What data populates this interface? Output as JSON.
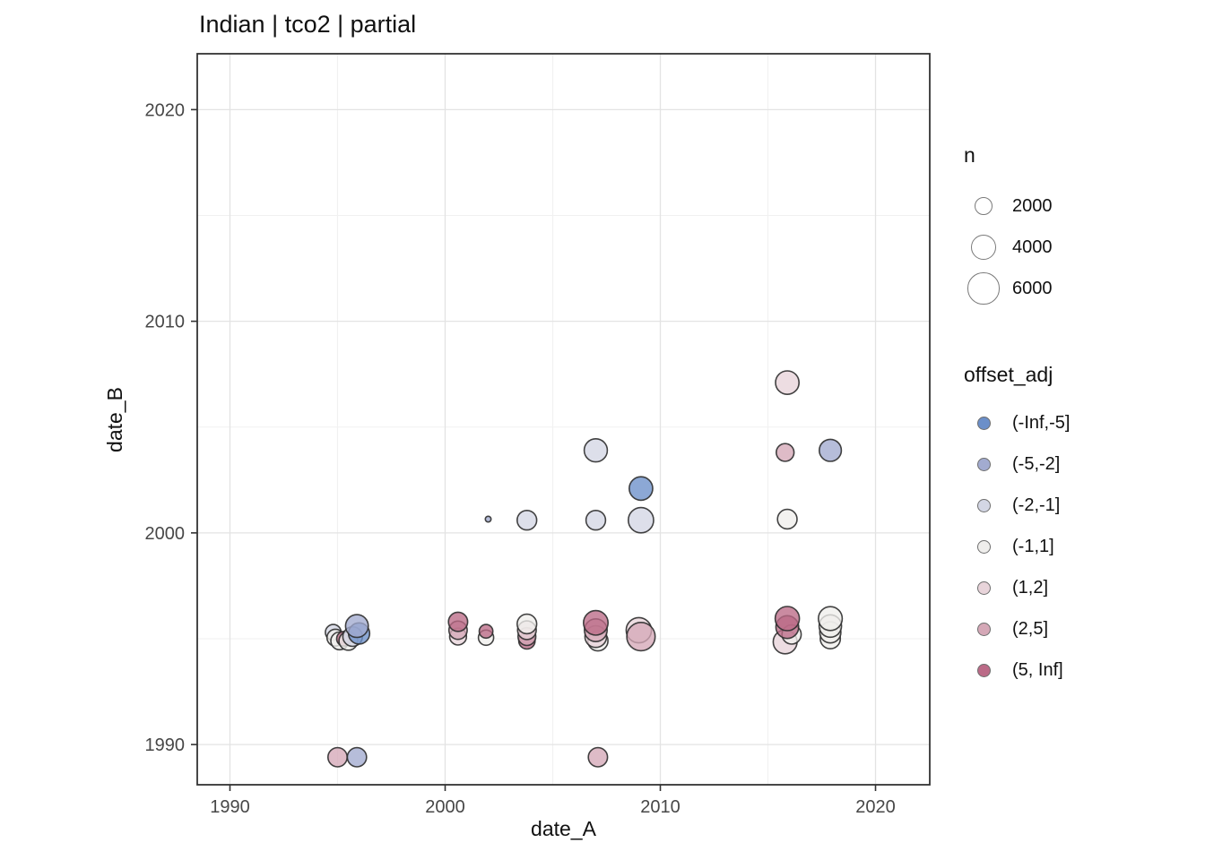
{
  "title": "Indian | tco2 | partial",
  "chart_data": {
    "type": "scatter",
    "title": "Indian | tco2 | partial",
    "xlabel": "date_A",
    "ylabel": "date_B",
    "xlim": [
      1988.48,
      2022.52
    ],
    "ylim": [
      1988.1,
      2022.64
    ],
    "x_major_ticks": [
      1990,
      2000,
      2010,
      2020
    ],
    "x_minor_ticks": [
      1995,
      2005,
      2015
    ],
    "y_major_ticks": [
      1990,
      2000,
      2010,
      2020
    ],
    "y_minor_ticks": [
      1995,
      2005,
      2015
    ],
    "grid": true,
    "legend_position": "right",
    "size_legend": {
      "title": "n",
      "entries": [
        2000,
        4000,
        6000
      ]
    },
    "color_legend": {
      "title": "offset_adj",
      "entries": [
        "(-Inf,-5]",
        "(-5,-2]",
        "(-2,-1]",
        "(-1,1]",
        "(1,2]",
        "(2,5]",
        "(5, Inf]"
      ]
    },
    "palette": {
      "(-Inf,-5]": "#6b8fc9",
      "(-5,-2]": "#a2abd0",
      "(-2,-1]": "#d3d6e4",
      "(-1,1]": "#efeeec",
      "(1,2]": "#e8d4da",
      "(2,5]": "#d5a8b7",
      "(5, Inf]": "#bb6a87"
    },
    "colors": {
      "grid_major": "#e3e3e3",
      "grid_minor": "#f1f1f1",
      "panel_border": "#333333",
      "tick_label": "#474747",
      "point_stroke": "#2e2e2e"
    },
    "size_scale": {
      "type": "sqrt",
      "k": 0.228
    },
    "points": [
      {
        "x": 1994.8,
        "y": 1995.3,
        "bin": "(-2,-1]",
        "n": 1500
      },
      {
        "x": 1994.9,
        "y": 1995.05,
        "bin": "(-1,1]",
        "n": 1700
      },
      {
        "x": 1995.1,
        "y": 1994.9,
        "bin": "(-1,1]",
        "n": 1900
      },
      {
        "x": 1995.3,
        "y": 1995.0,
        "bin": "(5, Inf]",
        "n": 1300
      },
      {
        "x": 1995.5,
        "y": 1994.9,
        "bin": "(-1,1]",
        "n": 2100
      },
      {
        "x": 1995.7,
        "y": 1995.1,
        "bin": "(-2,-1]",
        "n": 2300
      },
      {
        "x": 1996.0,
        "y": 1995.25,
        "bin": "(-Inf,-5]",
        "n": 2700
      },
      {
        "x": 1995.9,
        "y": 1995.6,
        "bin": "(-5,-2]",
        "n": 3100
      },
      {
        "x": 1995.0,
        "y": 1989.4,
        "bin": "(2,5]",
        "n": 2200
      },
      {
        "x": 1995.9,
        "y": 1989.4,
        "bin": "(-5,-2]",
        "n": 2200
      },
      {
        "x": 2007.1,
        "y": 1989.4,
        "bin": "(2,5]",
        "n": 2200
      },
      {
        "x": 2000.6,
        "y": 1995.1,
        "bin": "(1,2]",
        "n": 1700
      },
      {
        "x": 2000.6,
        "y": 1995.4,
        "bin": "(2,5]",
        "n": 2000
      },
      {
        "x": 2000.6,
        "y": 1995.8,
        "bin": "(5, Inf]",
        "n": 2200
      },
      {
        "x": 2001.9,
        "y": 1995.05,
        "bin": "(-1,1]",
        "n": 1400
      },
      {
        "x": 2001.9,
        "y": 1995.35,
        "bin": "(5, Inf]",
        "n": 1100
      },
      {
        "x": 2003.8,
        "y": 1994.9,
        "bin": "(5, Inf]",
        "n": 1600
      },
      {
        "x": 2003.8,
        "y": 1995.1,
        "bin": "(2,5]",
        "n": 1900
      },
      {
        "x": 2003.8,
        "y": 1995.4,
        "bin": "(1,2]",
        "n": 2100
      },
      {
        "x": 2003.8,
        "y": 1995.7,
        "bin": "(-1,1]",
        "n": 2300
      },
      {
        "x": 2002.0,
        "y": 2000.65,
        "bin": "(-5,-2]",
        "n": 200
      },
      {
        "x": 2003.8,
        "y": 2000.6,
        "bin": "(-2,-1]",
        "n": 2300
      },
      {
        "x": 2007.0,
        "y": 2000.6,
        "bin": "(-2,-1]",
        "n": 2300
      },
      {
        "x": 2007.0,
        "y": 2003.9,
        "bin": "(-2,-1]",
        "n": 3200
      },
      {
        "x": 2009.1,
        "y": 2000.6,
        "bin": "(-2,-1]",
        "n": 3800
      },
      {
        "x": 2009.1,
        "y": 2002.1,
        "bin": "(-Inf,-5]",
        "n": 3300
      },
      {
        "x": 2007.1,
        "y": 1994.9,
        "bin": "(-1,1]",
        "n": 2400
      },
      {
        "x": 2007.0,
        "y": 1995.1,
        "bin": "(1,2]",
        "n": 2800
      },
      {
        "x": 2007.0,
        "y": 1995.4,
        "bin": "(2,5]",
        "n": 3100
      },
      {
        "x": 2007.0,
        "y": 1995.75,
        "bin": "(5, Inf]",
        "n": 3600
      },
      {
        "x": 2009.0,
        "y": 1995.4,
        "bin": "(1,2]",
        "n": 3800
      },
      {
        "x": 2009.1,
        "y": 1995.1,
        "bin": "(2,5]",
        "n": 4800
      },
      {
        "x": 2015.9,
        "y": 2007.1,
        "bin": "(1,2]",
        "n": 3300
      },
      {
        "x": 2015.8,
        "y": 2003.8,
        "bin": "(2,5]",
        "n": 1900
      },
      {
        "x": 2017.9,
        "y": 2003.9,
        "bin": "(-5,-2]",
        "n": 2900
      },
      {
        "x": 2015.9,
        "y": 2000.65,
        "bin": "(-1,1]",
        "n": 2300
      },
      {
        "x": 2015.8,
        "y": 1994.85,
        "bin": "(1,2]",
        "n": 3400
      },
      {
        "x": 2016.1,
        "y": 1995.2,
        "bin": "(-1,1]",
        "n": 2200
      },
      {
        "x": 2015.9,
        "y": 1995.55,
        "bin": "(5, Inf]",
        "n": 3100
      },
      {
        "x": 2015.9,
        "y": 1995.95,
        "bin": "(5, Inf]",
        "n": 3500
      },
      {
        "x": 2017.9,
        "y": 1995.0,
        "bin": "(-1,1]",
        "n": 2400
      },
      {
        "x": 2017.9,
        "y": 1995.3,
        "bin": "(-1,1]",
        "n": 2700
      },
      {
        "x": 2017.9,
        "y": 1995.6,
        "bin": "(-1,1]",
        "n": 3000
      },
      {
        "x": 2017.9,
        "y": 1995.95,
        "bin": "(-1,1]",
        "n": 3400
      }
    ]
  }
}
